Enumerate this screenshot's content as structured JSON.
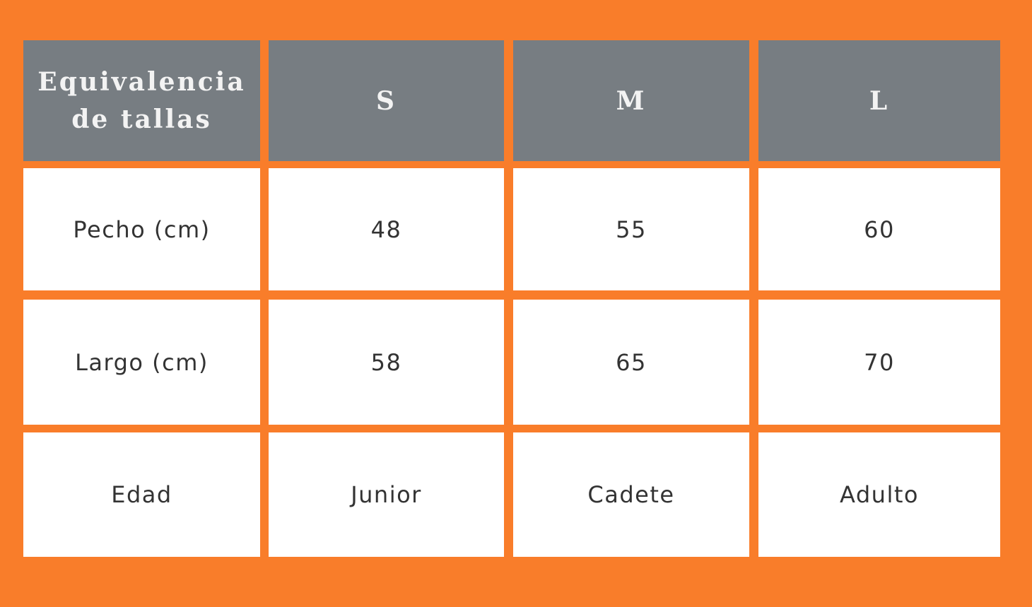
{
  "colors": {
    "background": "#f97d2a",
    "header": "#777d82",
    "cell": "#ffffff"
  },
  "table": {
    "corner_header": "Equivalencia de tallas",
    "sizes": [
      "S",
      "M",
      "L"
    ],
    "rows": [
      {
        "label": "Pecho (cm)",
        "values": [
          "48",
          "55",
          "60"
        ]
      },
      {
        "label": "Largo (cm)",
        "values": [
          "58",
          "65",
          "70"
        ]
      },
      {
        "label": "Edad",
        "values": [
          "Junior",
          "Cadete",
          "Adulto"
        ]
      }
    ]
  }
}
